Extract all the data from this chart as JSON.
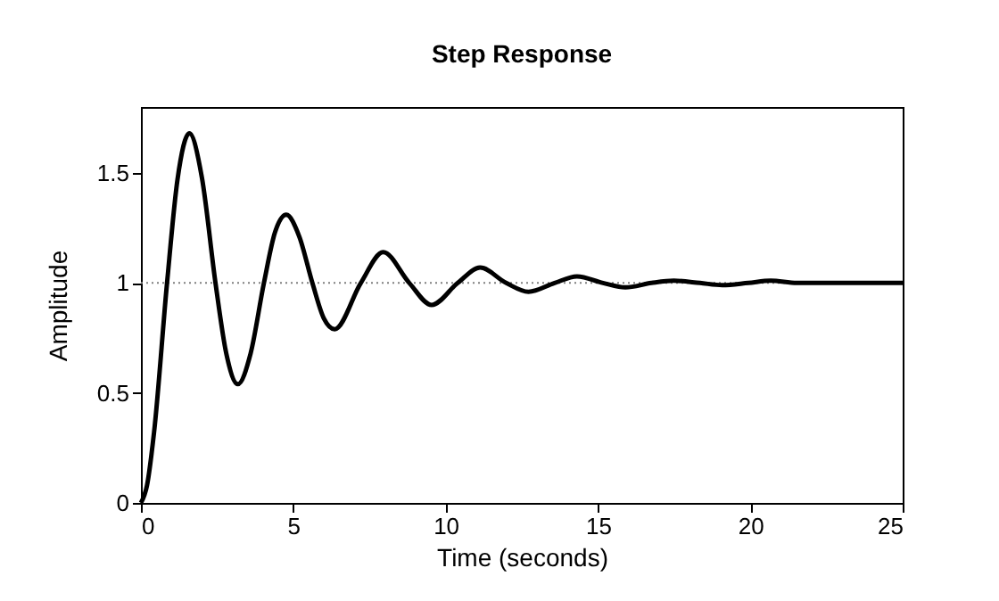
{
  "chart_data": {
    "type": "line",
    "title": "Step Response",
    "xlabel": "Time (seconds)",
    "ylabel": "Amplitude",
    "series": [
      {
        "color": "#000000",
        "x": [
          0,
          0.2,
          0.43,
          0.857,
          1.2,
          1.59,
          2.0,
          2.447,
          2.8,
          3.18,
          3.6,
          4.037,
          4.4,
          4.77,
          5.2,
          5.627,
          6.0,
          6.36,
          7.217,
          7.95,
          8.807,
          9.54,
          10.397,
          11.13,
          11.987,
          12.72,
          13.577,
          14.31,
          15.167,
          15.9,
          16.757,
          17.49,
          18.347,
          19.08,
          19.937,
          20.67,
          21.527,
          22.26,
          23.117,
          23.85,
          25
        ],
        "values": [
          0,
          0.08,
          0.32,
          1,
          1.47,
          1.68,
          1.48,
          1,
          0.68,
          0.54,
          0.68,
          1,
          1.23,
          1.31,
          1.21,
          1,
          0.84,
          0.79,
          1,
          1.14,
          1,
          0.9,
          1,
          1.07,
          1,
          0.96,
          1,
          1.03,
          1,
          0.98,
          1,
          1.01,
          1,
          0.99,
          1,
          1.01,
          1,
          1,
          1,
          1,
          1
        ]
      }
    ],
    "xlim": [
      0,
      25
    ],
    "xticks": [
      0,
      5,
      10,
      15,
      20,
      25
    ],
    "ylim": [
      0,
      1.8
    ],
    "yticks": [
      0,
      0.5,
      1,
      1.5
    ],
    "ref_lines": [
      {
        "axis": "y",
        "value": 1,
        "color": "#808080",
        "line_style": "dotted"
      }
    ],
    "grid": false,
    "marker": "none",
    "line_style": "solid"
  }
}
